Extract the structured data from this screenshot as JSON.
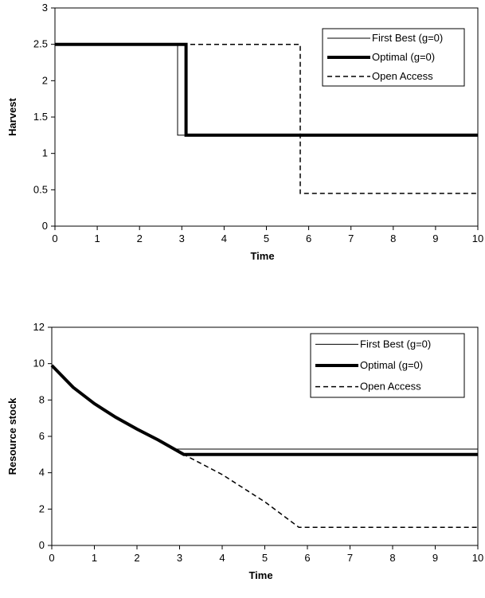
{
  "chart_data": [
    {
      "type": "line",
      "title": "",
      "xlabel": "Time",
      "ylabel": "Harvest",
      "xlim": [
        0,
        10
      ],
      "ylim": [
        0,
        3
      ],
      "xticks": [
        0,
        1,
        2,
        3,
        4,
        5,
        6,
        7,
        8,
        9,
        10
      ],
      "yticks": [
        0,
        0.5,
        1,
        1.5,
        2,
        2.5,
        3
      ],
      "ytick_labels": [
        "0",
        "0.5",
        "1",
        "1.5",
        "2",
        "2.5",
        "3"
      ],
      "grid": false,
      "legend_position": "top-right",
      "series": [
        {
          "name": "First Best (g=0)",
          "style": "thin-solid",
          "x": [
            0,
            2.9,
            2.9,
            10
          ],
          "y": [
            2.5,
            2.5,
            1.25,
            1.25
          ]
        },
        {
          "name": "Optimal (g=0)",
          "style": "thick-solid",
          "x": [
            0,
            3.1,
            3.1,
            10
          ],
          "y": [
            2.5,
            2.5,
            1.25,
            1.25
          ]
        },
        {
          "name": "Open Access",
          "style": "dashed",
          "x": [
            0,
            5.8,
            5.8,
            10
          ],
          "y": [
            2.5,
            2.5,
            0.45,
            0.45
          ]
        }
      ]
    },
    {
      "type": "line",
      "title": "",
      "xlabel": "Time",
      "ylabel": "Resource stock",
      "xlim": [
        0,
        10
      ],
      "ylim": [
        0,
        12
      ],
      "xticks": [
        0,
        1,
        2,
        3,
        4,
        5,
        6,
        7,
        8,
        9,
        10
      ],
      "yticks": [
        0,
        2,
        4,
        6,
        8,
        10,
        12
      ],
      "ytick_labels": [
        "0",
        "2",
        "4",
        "6",
        "8",
        "10",
        "12"
      ],
      "grid": false,
      "legend_position": "top-right",
      "series": [
        {
          "name": "First Best (g=0)",
          "style": "thin-solid",
          "x": [
            0,
            0.5,
            1,
            1.5,
            2,
            2.5,
            2.9,
            10
          ],
          "y": [
            9.9,
            8.7,
            7.8,
            7.05,
            6.4,
            5.8,
            5.3,
            5.3
          ]
        },
        {
          "name": "Optimal (g=0)",
          "style": "thick-solid",
          "x": [
            0,
            0.5,
            1,
            1.5,
            2,
            2.5,
            3.1,
            10
          ],
          "y": [
            9.9,
            8.7,
            7.8,
            7.05,
            6.4,
            5.8,
            5.0,
            5.0
          ]
        },
        {
          "name": "Open Access",
          "style": "dashed",
          "x": [
            0,
            0.5,
            1,
            1.5,
            2,
            2.5,
            3.1,
            4,
            5,
            5.8,
            10
          ],
          "y": [
            9.9,
            8.7,
            7.8,
            7.05,
            6.4,
            5.8,
            5.0,
            3.9,
            2.4,
            1.0,
            1.0
          ]
        }
      ]
    }
  ]
}
